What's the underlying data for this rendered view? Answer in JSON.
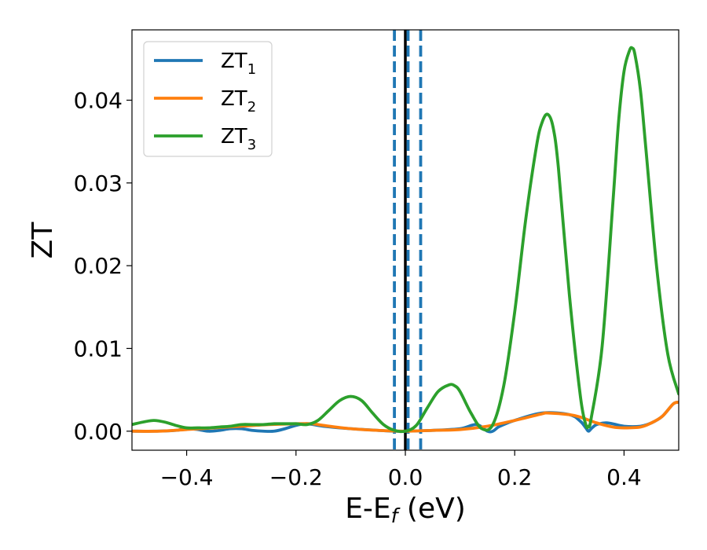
{
  "chart_data": {
    "type": "line",
    "title": "",
    "xlabel": {
      "main": "E-E",
      "sub": "f",
      "suffix": " (eV)"
    },
    "ylabel": "ZT",
    "xlim": [
      -0.5,
      0.5
    ],
    "ylim": [
      -0.0023,
      0.0485
    ],
    "xticks": [
      -0.4,
      -0.2,
      0.0,
      0.2,
      0.4
    ],
    "xtick_labels": [
      "−0.4",
      "−0.2",
      "0.0",
      "0.2",
      "0.4"
    ],
    "yticks": [
      0.0,
      0.01,
      0.02,
      0.03,
      0.04
    ],
    "ytick_labels": [
      "0.00",
      "0.01",
      "0.02",
      "0.03",
      "0.04"
    ],
    "grid": false,
    "legend_position": "top-left",
    "vertical_lines": [
      {
        "x": 0.0,
        "style": "solid",
        "color": "#000000"
      },
      {
        "x": -0.02,
        "style": "dashed",
        "color": "#1f77b4"
      },
      {
        "x": 0.005,
        "style": "dashed",
        "color": "#1f77b4"
      },
      {
        "x": 0.028,
        "style": "dashed",
        "color": "#1f77b4"
      }
    ],
    "series": [
      {
        "name": "ZT",
        "sub": "1",
        "color": "#1f77b4",
        "x": [
          -0.5,
          -0.46,
          -0.42,
          -0.4,
          -0.38,
          -0.36,
          -0.34,
          -0.32,
          -0.3,
          -0.28,
          -0.26,
          -0.24,
          -0.22,
          -0.2,
          -0.18,
          -0.15,
          -0.1,
          -0.05,
          -0.02,
          0.0,
          0.05,
          0.1,
          0.13,
          0.15,
          0.16,
          0.17,
          0.18,
          0.2,
          0.25,
          0.3,
          0.32,
          0.33,
          0.335,
          0.34,
          0.35,
          0.37,
          0.4,
          0.43,
          0.45,
          0.47,
          0.49,
          0.5
        ],
        "y": [
          0.0,
          0.0,
          0.0001,
          0.0003,
          0.0002,
          0.0,
          0.0001,
          0.0003,
          0.0003,
          0.0001,
          0.0,
          0.0,
          0.0003,
          0.0007,
          0.0009,
          0.0006,
          0.0003,
          0.0001,
          0.0,
          0.0,
          0.0001,
          0.0003,
          0.0008,
          0.0,
          0.0,
          0.0005,
          0.0008,
          0.0013,
          0.0022,
          0.002,
          0.0012,
          0.0004,
          0.0,
          0.0003,
          0.0008,
          0.001,
          0.0006,
          0.0006,
          0.001,
          0.0018,
          0.0033,
          0.0035
        ]
      },
      {
        "name": "ZT",
        "sub": "2",
        "color": "#ff7f0e",
        "x": [
          -0.5,
          -0.45,
          -0.4,
          -0.35,
          -0.3,
          -0.25,
          -0.2,
          -0.17,
          -0.15,
          -0.1,
          -0.05,
          0.0,
          0.05,
          0.1,
          0.15,
          0.2,
          0.25,
          0.26,
          0.3,
          0.32,
          0.35,
          0.38,
          0.4,
          0.43,
          0.45,
          0.47,
          0.49,
          0.5
        ],
        "y": [
          0.0,
          0.0,
          0.0002,
          0.0004,
          0.0006,
          0.0008,
          0.0009,
          0.0009,
          0.0007,
          0.0003,
          0.0001,
          0.0,
          0.0001,
          0.0002,
          0.0006,
          0.0013,
          0.0021,
          0.0022,
          0.002,
          0.0017,
          0.001,
          0.0005,
          0.0004,
          0.0005,
          0.001,
          0.0018,
          0.0033,
          0.0035
        ]
      },
      {
        "name": "ZT",
        "sub": "3",
        "color": "#2ca02c",
        "x": [
          -0.5,
          -0.48,
          -0.46,
          -0.44,
          -0.42,
          -0.4,
          -0.38,
          -0.36,
          -0.34,
          -0.32,
          -0.3,
          -0.28,
          -0.26,
          -0.24,
          -0.22,
          -0.2,
          -0.18,
          -0.16,
          -0.14,
          -0.12,
          -0.1,
          -0.08,
          -0.06,
          -0.04,
          -0.02,
          0.0,
          0.02,
          0.04,
          0.06,
          0.08,
          0.09,
          0.1,
          0.12,
          0.14,
          0.16,
          0.18,
          0.2,
          0.22,
          0.24,
          0.25,
          0.26,
          0.27,
          0.28,
          0.3,
          0.32,
          0.33,
          0.335,
          0.34,
          0.36,
          0.38,
          0.39,
          0.4,
          0.41,
          0.415,
          0.42,
          0.43,
          0.44,
          0.46,
          0.48,
          0.5
        ],
        "y": [
          0.0008,
          0.0011,
          0.0013,
          0.0011,
          0.0007,
          0.0004,
          0.0004,
          0.0004,
          0.0005,
          0.0006,
          0.0008,
          0.0008,
          0.0008,
          0.0009,
          0.0009,
          0.0009,
          0.0008,
          0.0013,
          0.0025,
          0.0037,
          0.0042,
          0.0037,
          0.0022,
          0.0008,
          0.0001,
          0.0,
          0.0007,
          0.0028,
          0.0048,
          0.0056,
          0.0055,
          0.0048,
          0.0022,
          0.0003,
          0.0008,
          0.0055,
          0.0144,
          0.0255,
          0.0345,
          0.0373,
          0.0383,
          0.0368,
          0.0318,
          0.0165,
          0.0043,
          0.0008,
          0.0006,
          0.0016,
          0.0103,
          0.028,
          0.0374,
          0.0435,
          0.046,
          0.0463,
          0.0455,
          0.0412,
          0.0341,
          0.0196,
          0.0093,
          0.0045
        ]
      }
    ]
  }
}
